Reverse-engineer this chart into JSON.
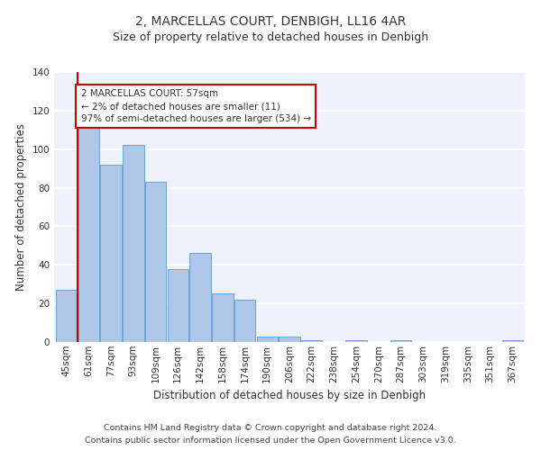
{
  "title": "2, MARCELLAS COURT, DENBIGH, LL16 4AR",
  "subtitle": "Size of property relative to detached houses in Denbigh",
  "xlabel": "Distribution of detached houses by size in Denbigh",
  "ylabel": "Number of detached properties",
  "categories": [
    "45sqm",
    "61sqm",
    "77sqm",
    "93sqm",
    "109sqm",
    "126sqm",
    "142sqm",
    "158sqm",
    "174sqm",
    "190sqm",
    "206sqm",
    "222sqm",
    "238sqm",
    "254sqm",
    "270sqm",
    "287sqm",
    "303sqm",
    "319sqm",
    "335sqm",
    "351sqm",
    "367sqm"
  ],
  "values": [
    27,
    111,
    92,
    102,
    83,
    38,
    46,
    25,
    22,
    3,
    3,
    1,
    0,
    1,
    0,
    1,
    0,
    0,
    0,
    0,
    1
  ],
  "bar_color": "#aec6e8",
  "bar_edge_color": "#5b9bd5",
  "vline_x_index": 1,
  "vline_color": "#cc0000",
  "ylim": [
    0,
    140
  ],
  "yticks": [
    0,
    20,
    40,
    60,
    80,
    100,
    120,
    140
  ],
  "annotation_text": "2 MARCELLAS COURT: 57sqm\n← 2% of detached houses are smaller (11)\n97% of semi-detached houses are larger (534) →",
  "annotation_box_color": "#ffffff",
  "annotation_box_edge": "#cc0000",
  "footer_line1": "Contains HM Land Registry data © Crown copyright and database right 2024.",
  "footer_line2": "Contains public sector information licensed under the Open Government Licence v3.0.",
  "background_color": "#eef2fa",
  "grid_color": "#ffffff",
  "title_fontsize": 10,
  "subtitle_fontsize": 9,
  "axis_label_fontsize": 8.5,
  "tick_fontsize": 7.5,
  "annotation_fontsize": 7.5,
  "footer_fontsize": 6.8
}
